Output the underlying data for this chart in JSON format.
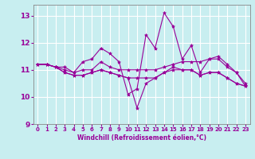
{
  "background_color": "#c8eef0",
  "grid_color": "#ffffff",
  "line_color": "#990099",
  "marker": "*",
  "xlabel": "Windchill (Refroidissement éolien,°C)",
  "xlim": [
    -0.5,
    23.5
  ],
  "ylim": [
    9,
    13.4
  ],
  "yticks": [
    9,
    10,
    11,
    12,
    13
  ],
  "xticks": [
    0,
    1,
    2,
    3,
    4,
    5,
    6,
    7,
    8,
    9,
    10,
    11,
    12,
    13,
    14,
    15,
    16,
    17,
    18,
    19,
    20,
    21,
    22,
    23
  ],
  "series": [
    [
      11.2,
      11.2,
      11.1,
      11.1,
      10.9,
      11.3,
      11.4,
      11.8,
      11.6,
      11.3,
      10.1,
      10.3,
      12.3,
      11.8,
      13.1,
      12.6,
      11.4,
      11.9,
      10.9,
      11.4,
      11.5,
      11.2,
      10.9,
      10.5
    ],
    [
      11.2,
      11.2,
      11.1,
      11.0,
      10.9,
      11.0,
      11.0,
      11.3,
      11.1,
      11.0,
      11.0,
      11.0,
      11.0,
      11.0,
      11.1,
      11.2,
      11.3,
      11.3,
      11.3,
      11.4,
      11.4,
      11.1,
      10.9,
      10.4
    ],
    [
      11.2,
      11.2,
      11.1,
      10.9,
      10.8,
      10.8,
      10.9,
      11.0,
      10.9,
      10.8,
      10.7,
      9.6,
      10.5,
      10.7,
      10.9,
      11.1,
      11.0,
      11.0,
      10.8,
      10.9,
      10.9,
      10.7,
      10.5,
      10.4
    ],
    [
      11.2,
      11.2,
      11.1,
      10.9,
      10.8,
      10.8,
      10.9,
      11.0,
      10.9,
      10.8,
      10.7,
      10.7,
      10.7,
      10.7,
      10.9,
      11.0,
      11.0,
      11.0,
      10.8,
      10.9,
      10.9,
      10.7,
      10.5,
      10.4
    ]
  ]
}
